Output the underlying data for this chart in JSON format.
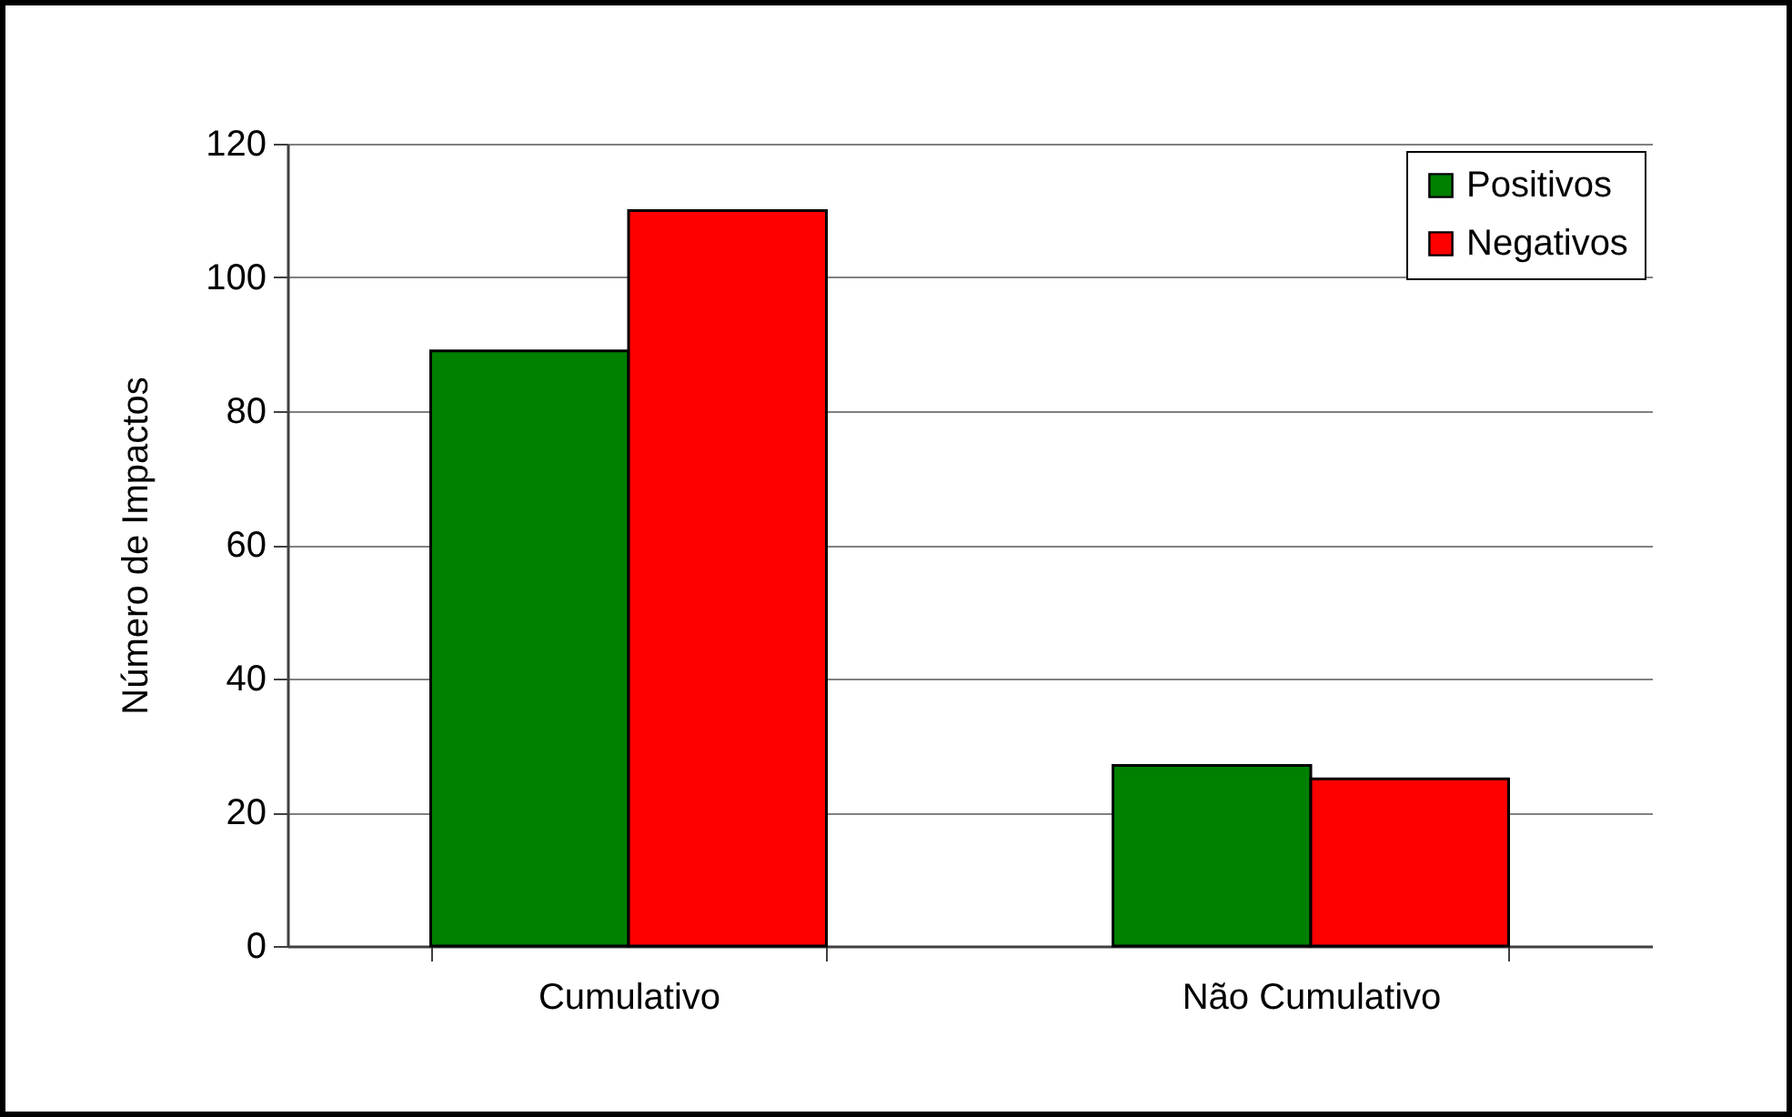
{
  "chart_data": {
    "type": "bar",
    "ylabel": "Número de Impactos",
    "categories": [
      "Cumulativo",
      "Não Cumulativo"
    ],
    "series": [
      {
        "name": "Positivos",
        "color": "#008000",
        "values": [
          89,
          27
        ]
      },
      {
        "name": "Negativos",
        "color": "#ff0000",
        "values": [
          110,
          25
        ]
      }
    ],
    "ylim": [
      0,
      120
    ],
    "yticks": [
      0,
      20,
      40,
      60,
      80,
      100,
      120
    ],
    "grid": "y",
    "legend": "top right"
  }
}
